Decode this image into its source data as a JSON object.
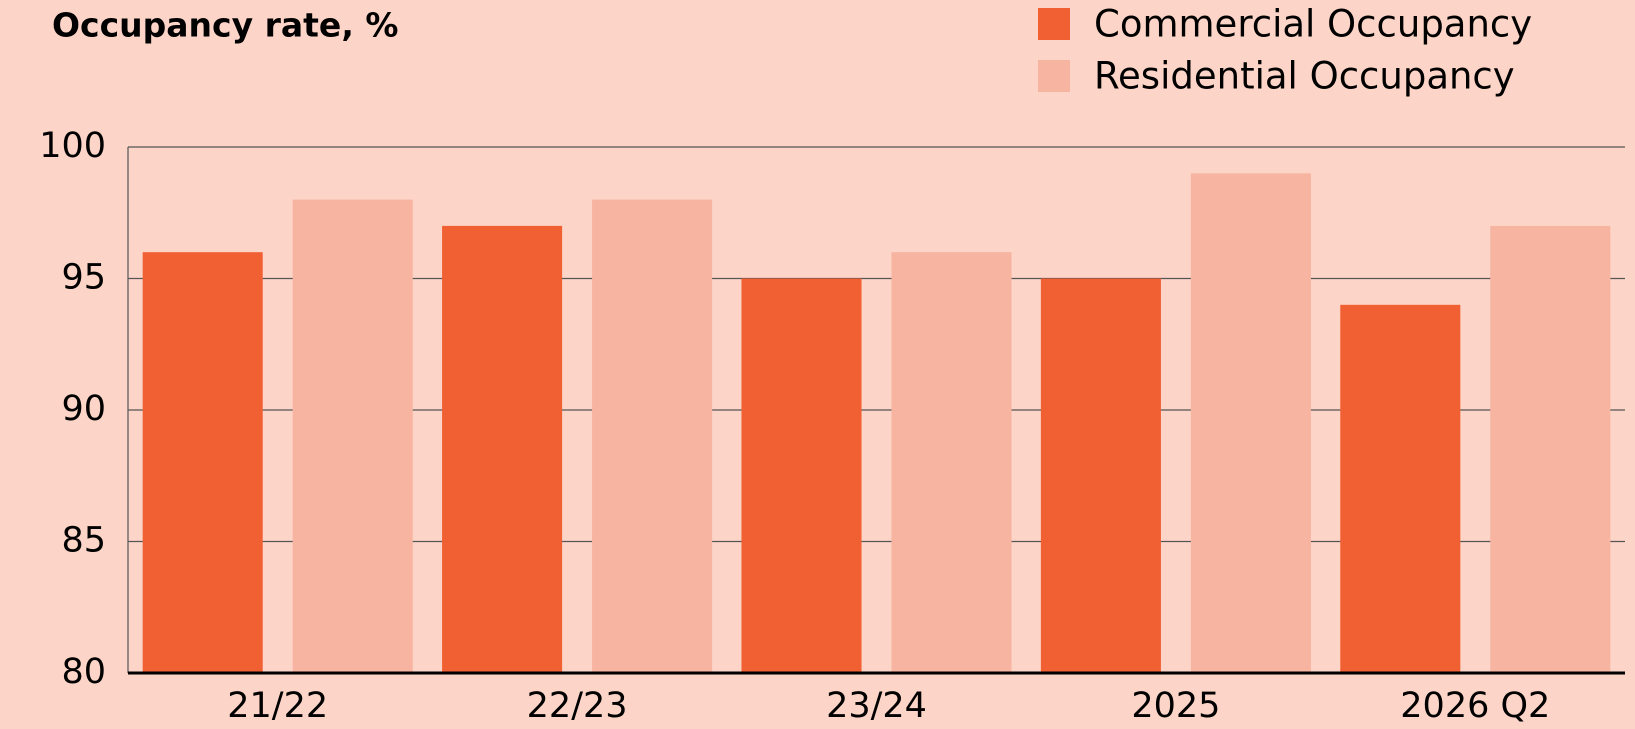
{
  "chart_data": {
    "type": "bar",
    "title": "Occupancy rate, %",
    "categories": [
      "21/22",
      "22/23",
      "23/24",
      "2025",
      "2026 Q2"
    ],
    "series": [
      {
        "name": "Commercial Occupancy",
        "color": "#f06033",
        "values": [
          96,
          97,
          95,
          95,
          94
        ]
      },
      {
        "name": "Residential Occupancy",
        "color": "#f7b4a0",
        "values": [
          98,
          98,
          96,
          99,
          97
        ]
      }
    ],
    "ylim": [
      80,
      100
    ],
    "yticks": [
      80,
      85,
      90,
      95,
      100
    ],
    "grid": true,
    "legend": "top-right"
  }
}
